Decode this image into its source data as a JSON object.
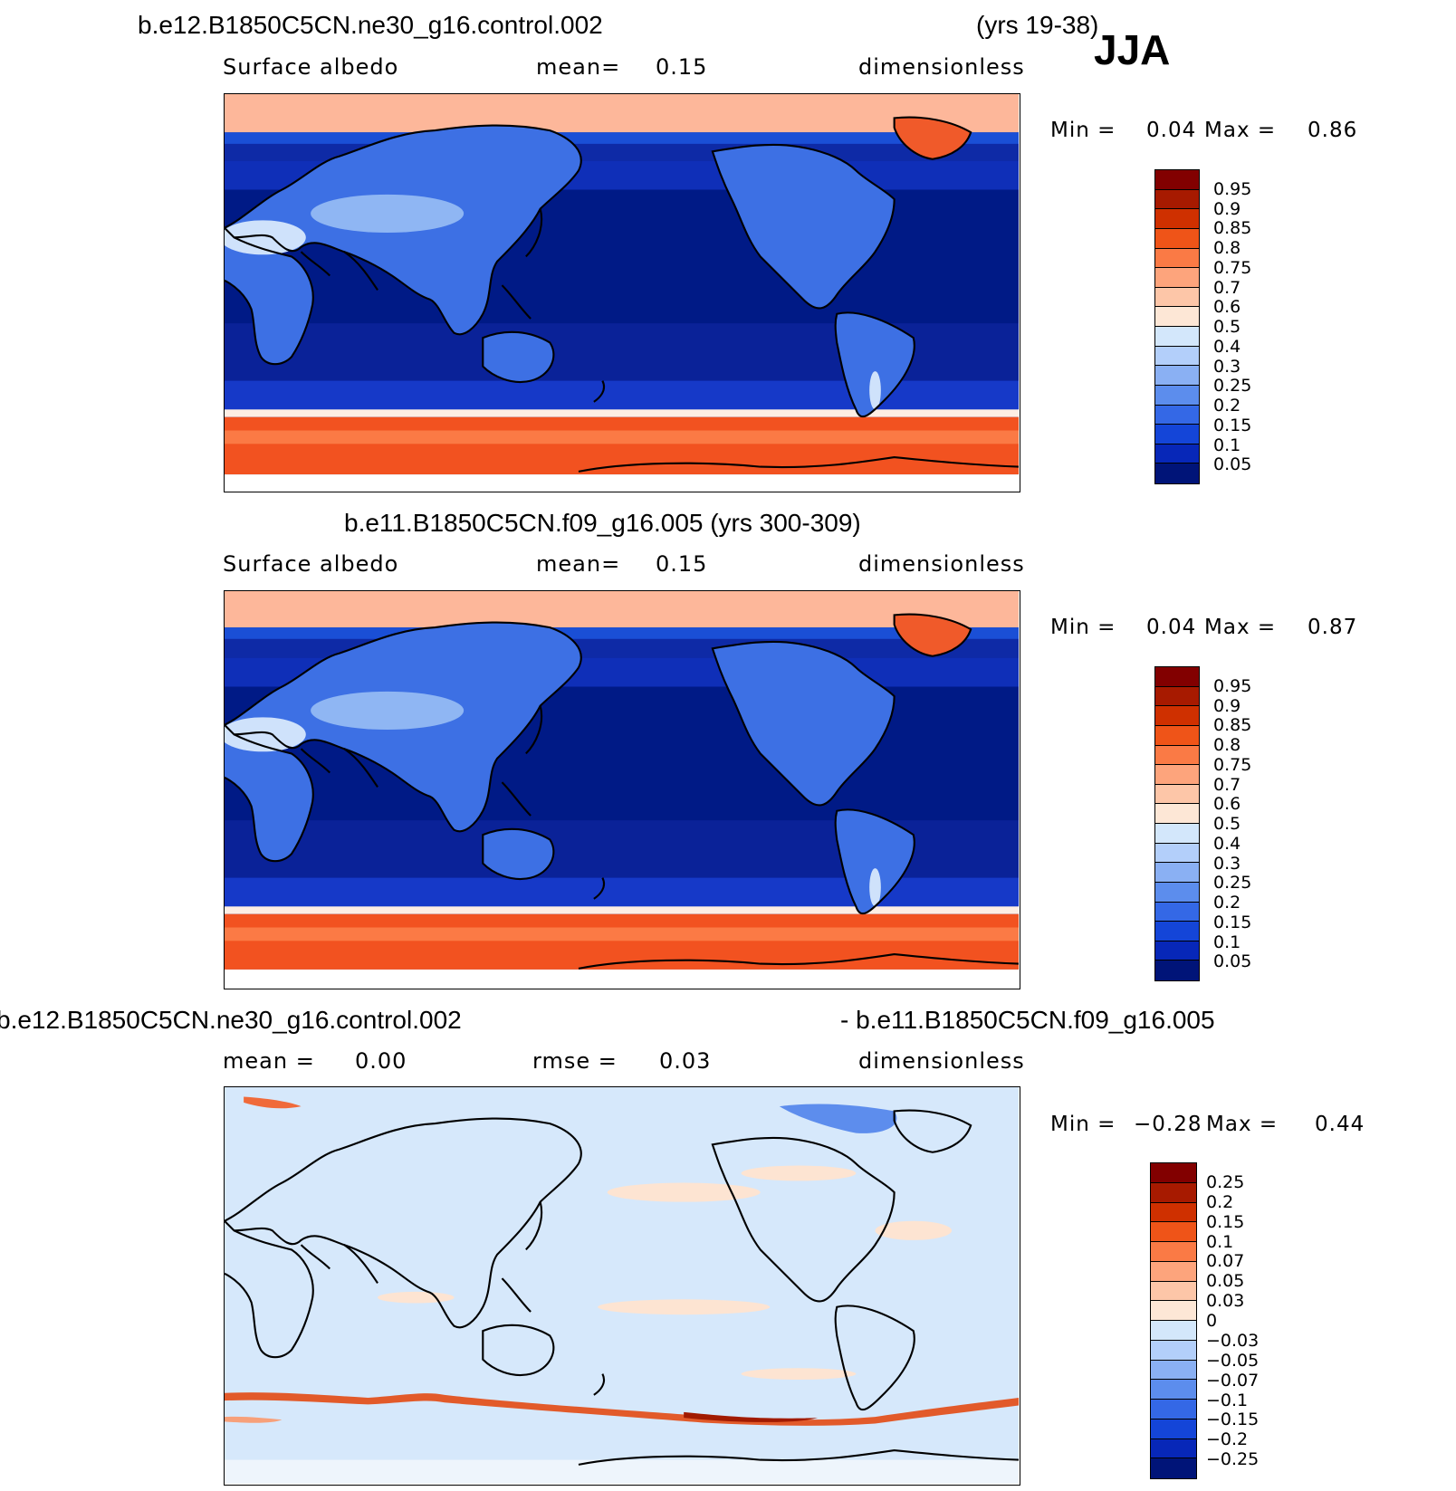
{
  "season": "JJA",
  "panels": [
    {
      "title": "b.e12.B1850C5CN.ne30_g16.control.002",
      "years": "(yrs 19-38)",
      "variable": "Surface albedo",
      "stat_label": "mean=",
      "stat_value": "0.15",
      "units": "dimensionless",
      "min_label": "Min =",
      "min_value": "0.04",
      "max_label": "Max =",
      "max_value": "0.86",
      "legend_labels": [
        "0.95",
        "0.9",
        "0.85",
        "0.8",
        "0.75",
        "0.7",
        "0.6",
        "0.5",
        "0.4",
        "0.3",
        "0.25",
        "0.2",
        "0.15",
        "0.1",
        "0.05"
      ]
    },
    {
      "title": "b.e11.B1850C5CN.f09_g16.005 (yrs 300-309)",
      "variable": "Surface albedo",
      "stat_label": "mean=",
      "stat_value": "0.15",
      "units": "dimensionless",
      "min_label": "Min =",
      "min_value": "0.04",
      "max_label": "Max =",
      "max_value": "0.87",
      "legend_labels": [
        "0.95",
        "0.9",
        "0.85",
        "0.8",
        "0.75",
        "0.7",
        "0.6",
        "0.5",
        "0.4",
        "0.3",
        "0.25",
        "0.2",
        "0.15",
        "0.1",
        "0.05"
      ]
    },
    {
      "title_left": "b.e12.B1850C5CN.ne30_g16.control.002",
      "title_right": "- b.e11.B1850C5CN.f09_g16.005",
      "mean_label": "mean =",
      "mean_value": "0.00",
      "rmse_label": "rmse =",
      "rmse_value": "0.03",
      "units": "dimensionless",
      "min_label": "Min =",
      "min_value": "−0.28",
      "max_label": "Max =",
      "max_value": "0.44",
      "legend_labels": [
        "0.25",
        "0.2",
        "0.15",
        "0.1",
        "0.07",
        "0.05",
        "0.03",
        "0",
        "−0.03",
        "−0.05",
        "−0.07",
        "−0.1",
        "−0.15",
        "−0.2",
        "−0.25"
      ]
    }
  ],
  "colors": {
    "albedo_scale": [
      "#820000",
      "#a71a00",
      "#cf3000",
      "#ef5418",
      "#fa7a45",
      "#fda47c",
      "#fdc6a8",
      "#fde7d6",
      "#d3e7fb",
      "#b3cffa",
      "#8ab0f3",
      "#5c8ded",
      "#3468e6",
      "#1445d8",
      "#0727b8",
      "#001478"
    ],
    "diff_scale": [
      "#820000",
      "#a71a00",
      "#cf3000",
      "#ef5418",
      "#fa7a45",
      "#fda47c",
      "#fdc6a8",
      "#fde7d6",
      "#d3e7fb",
      "#b3cffa",
      "#8ab0f3",
      "#5c8ded",
      "#3468e6",
      "#1445d8",
      "#0727b8",
      "#001478"
    ]
  }
}
